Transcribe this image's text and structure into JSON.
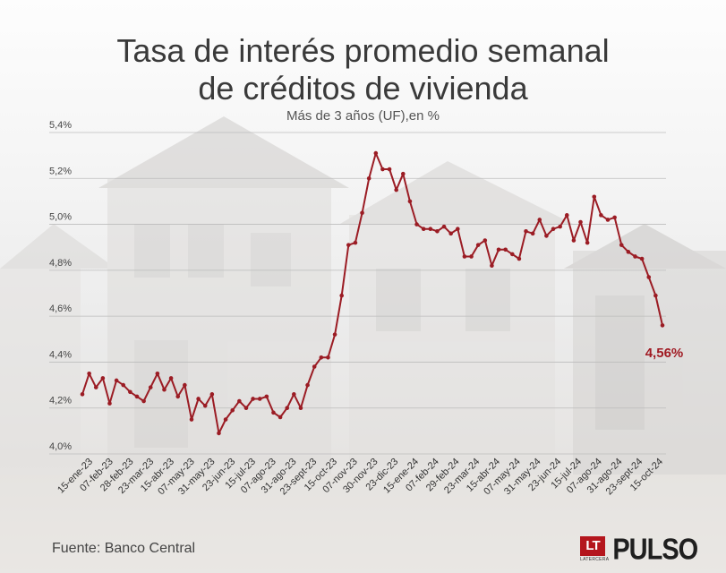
{
  "header": {
    "title_line1": "Tasa de interés promedio semanal",
    "title_line2": "de créditos de vivienda",
    "subtitle": "Más de 3 años (UF),en %"
  },
  "footer": {
    "source": "Fuente: Banco Central",
    "logo_mark": "LT",
    "logo_sub": "LATERCERA",
    "logo_brand": "PULSO"
  },
  "colors": {
    "line": "#9b1c24",
    "label": "#a01a22",
    "grid": "#bcbcbc"
  },
  "chart_data": {
    "type": "line",
    "title": "Tasa de interés promedio semanal de créditos de vivienda",
    "subtitle": "Más de 3 años (UF),en %",
    "xlabel": "",
    "ylabel": "",
    "ylim": [
      4.0,
      5.4
    ],
    "yticks": [
      4.0,
      4.2,
      4.4,
      4.6,
      4.8,
      5.0,
      5.2,
      5.4
    ],
    "ytick_labels": [
      "4,0%",
      "4,2%",
      "4,4%",
      "4,6%",
      "4,8%",
      "5,0%",
      "5,2%",
      "5,4%"
    ],
    "grid": true,
    "legend": "none",
    "xtick_labels": [
      "15-ene-23",
      "07-feb-23",
      "28-feb-23",
      "23-mar-23",
      "15-abr-23",
      "07-may-23",
      "31-may-23",
      "23-jun-23",
      "15-jul-23",
      "07-ago-23",
      "31-ago-23",
      "23-sept-23",
      "15-oct-23",
      "07-nov-23",
      "30-nov-23",
      "23-dic-23",
      "15-ene-24",
      "07-feb-24",
      "29-feb-24",
      "23-mar-24",
      "15-abr-24",
      "07-may-24",
      "31-may-24",
      "23-jun-24",
      "15-jul-24",
      "07-ago-24",
      "31-ago-24",
      "23-sept-24",
      "15-oct-24"
    ],
    "annotation": {
      "text": "4,56%",
      "value": 4.56
    },
    "series": [
      {
        "values": [
          4.26,
          4.35,
          4.29,
          4.33,
          4.22,
          4.32,
          4.3,
          4.27,
          4.25,
          4.23,
          4.29,
          4.35,
          4.28,
          4.33,
          4.25,
          4.3,
          4.15,
          4.24,
          4.21,
          4.26,
          4.09,
          4.15,
          4.19,
          4.23,
          4.2,
          4.24,
          4.24,
          4.25,
          4.18,
          4.16,
          4.2,
          4.26,
          4.2,
          4.3,
          4.38,
          4.42,
          4.42,
          4.52,
          4.69,
          4.91,
          4.92,
          5.05,
          5.2,
          5.31,
          5.24,
          5.24,
          5.15,
          5.22,
          5.1,
          5.0,
          4.98,
          4.98,
          4.97,
          4.99,
          4.96,
          4.98,
          4.86,
          4.86,
          4.91,
          4.93,
          4.82,
          4.89,
          4.89,
          4.87,
          4.85,
          4.97,
          4.96,
          5.02,
          4.95,
          4.98,
          4.99,
          5.04,
          4.93,
          5.01,
          4.92,
          5.12,
          5.04,
          5.02,
          5.03,
          4.91,
          4.88,
          4.86,
          4.85,
          4.77,
          4.69,
          4.56
        ]
      }
    ]
  }
}
